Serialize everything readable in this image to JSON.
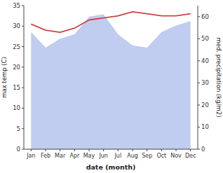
{
  "chart_data": {
    "type": "line",
    "categories": [
      "Jan",
      "Feb",
      "Mar",
      "Apr",
      "May",
      "Jun",
      "Jul",
      "Aug",
      "Sep",
      "Oct",
      "Nov",
      "Dec"
    ],
    "series": [
      {
        "type": "area",
        "axis": "y2",
        "color": "#c0ccf0",
        "values": [
          53,
          46,
          50,
          52,
          60,
          61,
          52,
          47,
          46,
          53,
          56,
          58
        ]
      },
      {
        "type": "line",
        "color": "#cc4444",
        "values": [
          30.5,
          29.0,
          28.5,
          29.5,
          31.5,
          32.0,
          32.5,
          33.5,
          33.0,
          32.5,
          32.5,
          33.0
        ]
      }
    ],
    "xlabel": "date (month)",
    "ylabel": "max temp (C)",
    "y2label": "med. precipitation (kg/m2)",
    "ylim": [
      0,
      35
    ],
    "yticks": [
      0,
      5,
      10,
      15,
      20,
      25,
      30,
      35
    ],
    "y2lim": [
      0,
      65
    ],
    "y2ticks": [
      0,
      10,
      20,
      30,
      40,
      50,
      60
    ],
    "grid": false
  }
}
